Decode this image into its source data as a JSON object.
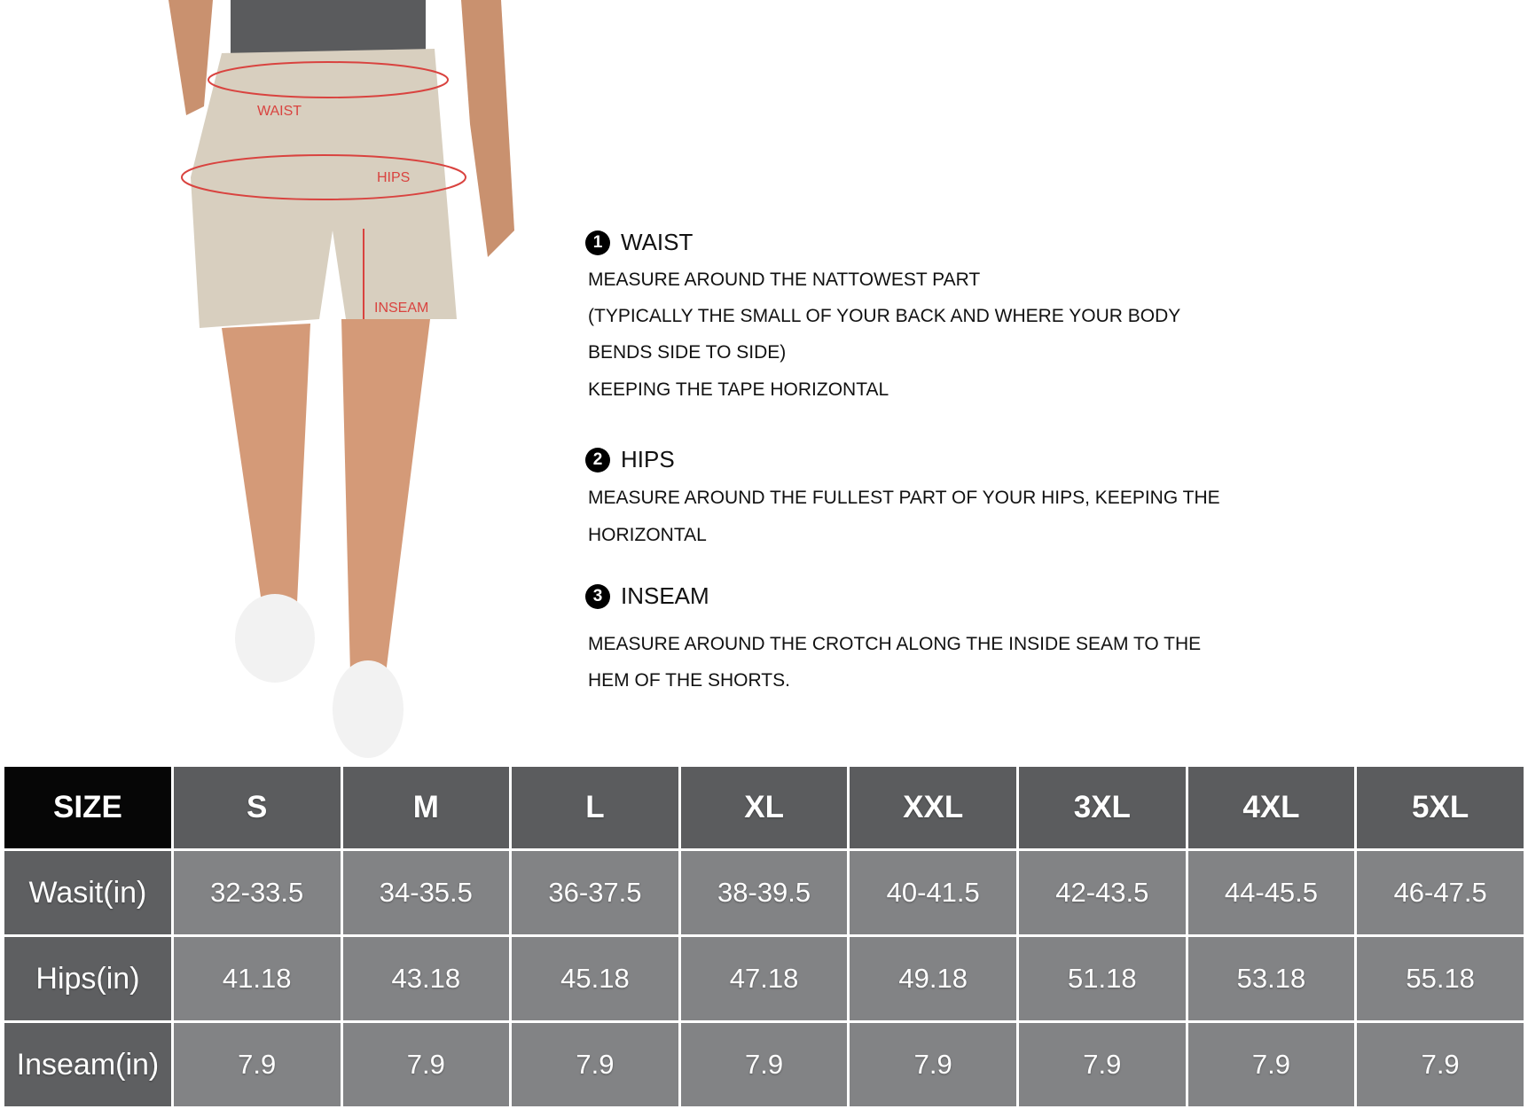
{
  "figure": {
    "labels": {
      "waist": "WAIST",
      "hips": "HIPS",
      "inseam": "INSEAM"
    },
    "accent": "#d9433f"
  },
  "guide": [
    {
      "number": "1",
      "title": "WAIST",
      "lines": [
        "MEASURE AROUND THE NATTOWEST PART",
        "(TYPICALLY THE SMALL OF YOUR BACK AND WHERE YOUR BODY",
        "BENDS SIDE TO SIDE)",
        "KEEPING THE TAPE HORIZONTAL"
      ]
    },
    {
      "number": "2",
      "title": "HIPS",
      "lines": [
        "MEASURE AROUND THE FULLEST PART OF YOUR HIPS, KEEPING THE",
        "HORIZONTAL"
      ]
    },
    {
      "number": "3",
      "title": "INSEAM",
      "lines": [
        "MEASURE AROUND THE CROTCH ALONG THE INSIDE SEAM TO THE",
        "HEM OF THE SHORTS."
      ]
    }
  ],
  "table": {
    "header": [
      "SIZE",
      "S",
      "M",
      "L",
      "XL",
      "XXL",
      "3XL",
      "4XL",
      "5XL"
    ],
    "rows": [
      {
        "label": "Wasit(in)",
        "values": [
          "32-33.5",
          "34-35.5",
          "36-37.5",
          "38-39.5",
          "40-41.5",
          "42-43.5",
          "44-45.5",
          "46-47.5"
        ]
      },
      {
        "label": "Hips(in)",
        "values": [
          "41.18",
          "43.18",
          "45.18",
          "47.18",
          "49.18",
          "51.18",
          "53.18",
          "55.18"
        ]
      },
      {
        "label": "Inseam(in)",
        "values": [
          "7.9",
          "7.9",
          "7.9",
          "7.9",
          "7.9",
          "7.9",
          "7.9",
          "7.9"
        ]
      }
    ]
  }
}
